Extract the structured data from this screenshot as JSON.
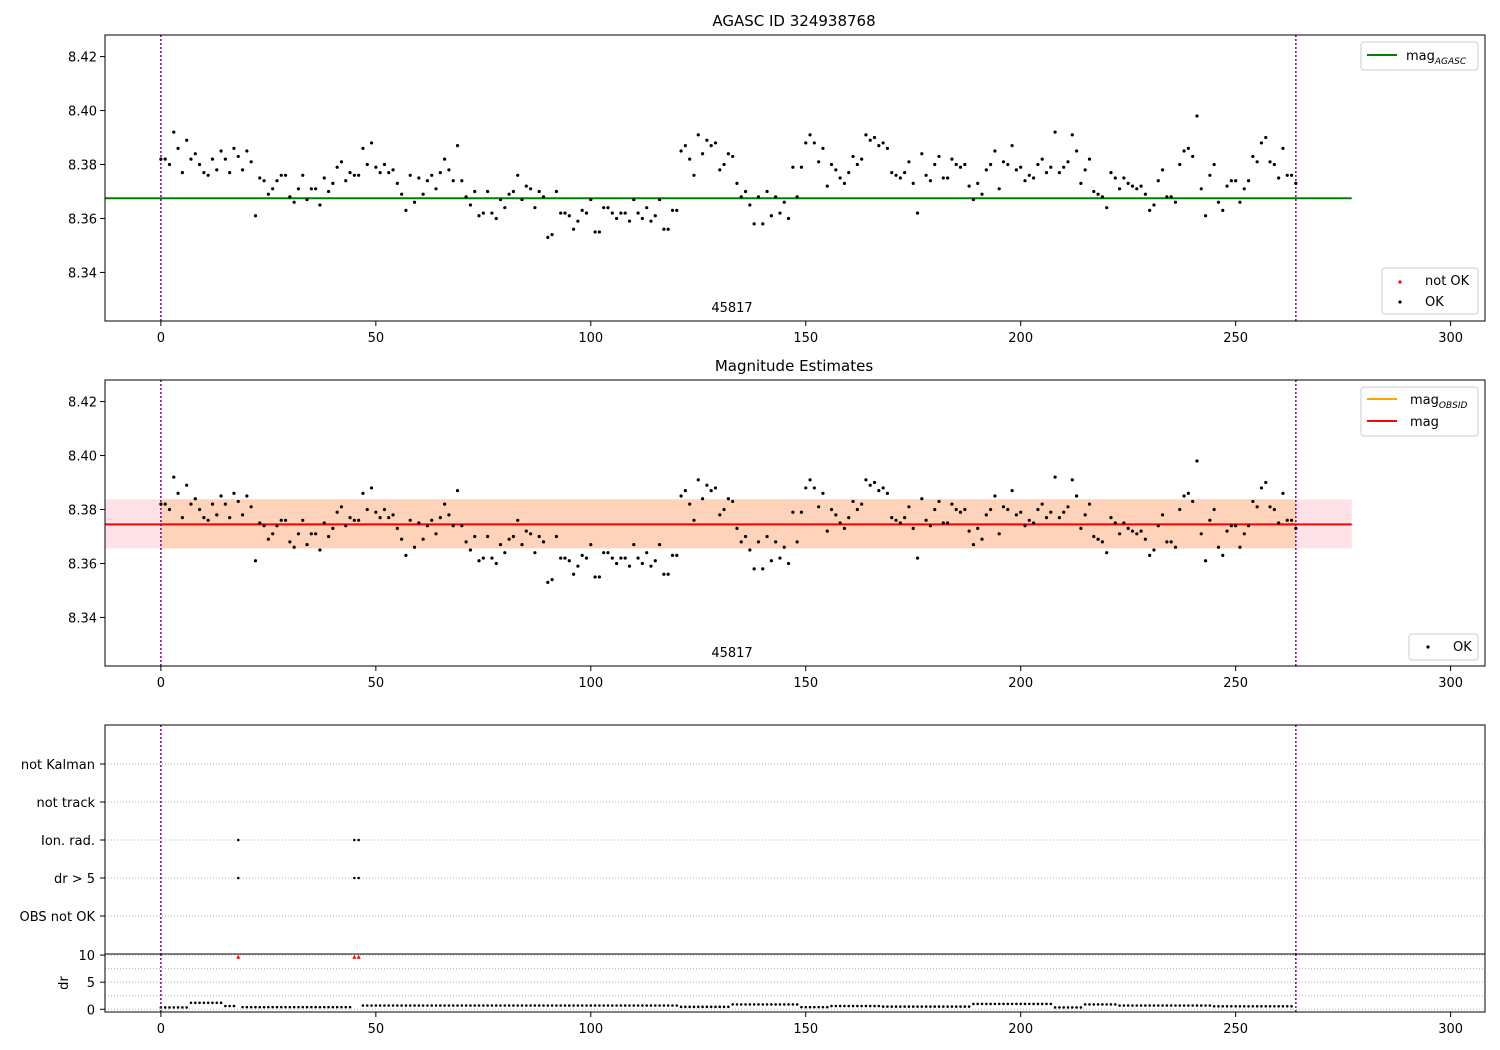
{
  "chart_data": [
    {
      "type": "scatter",
      "title": "AGASC ID 324938768",
      "ylim": [
        8.322,
        8.428
      ],
      "xlim": [
        -13,
        308
      ],
      "yticks": [
        "8.34",
        "8.36",
        "8.38",
        "8.40",
        "8.42"
      ],
      "xticks": [
        "0",
        "50",
        "100",
        "150",
        "200",
        "250",
        "300"
      ],
      "obsid_label": "45817",
      "obsid_boundaries": [
        0,
        264
      ],
      "series": [
        {
          "name": "OK",
          "color": "#000000"
        },
        {
          "name": "not OK",
          "color": "#ff0000"
        }
      ],
      "reference_lines": [
        {
          "name": "mag_AGASC",
          "value": 8.3675,
          "x_range": [
            -13,
            277
          ],
          "color": "#008000"
        }
      ],
      "legend_upper": {
        "label": "mag",
        "subscript": "AGASC"
      },
      "legend_lower": [
        "not OK",
        "OK"
      ],
      "grid": false
    },
    {
      "type": "scatter",
      "title": "Magnitude Estimates",
      "ylim": [
        8.322,
        8.428
      ],
      "xlim": [
        -13,
        308
      ],
      "yticks": [
        "8.34",
        "8.36",
        "8.38",
        "8.40",
        "8.42"
      ],
      "xticks": [
        "0",
        "50",
        "100",
        "150",
        "200",
        "250",
        "300"
      ],
      "obsid_label": "45817",
      "obsid_boundaries": [
        0,
        264
      ],
      "series": [
        {
          "name": "OK",
          "color": "#000000"
        }
      ],
      "reference_lines": [
        {
          "name": "mag_OBSID",
          "value": 8.3745,
          "band": [
            8.3656,
            8.3838
          ],
          "x_range": [
            0,
            264
          ],
          "color": "#ffa500"
        },
        {
          "name": "mag",
          "value": 8.3745,
          "band": [
            8.3656,
            8.3838
          ],
          "x_range": [
            -13,
            277
          ],
          "color": "#ff0000"
        }
      ],
      "legend": [
        {
          "label": "mag",
          "subscript": "OBSID",
          "color": "#ffa500"
        },
        {
          "label": "mag",
          "subscript": "",
          "color": "#ff0000"
        }
      ],
      "legend_lower": [
        "OK"
      ],
      "grid": false
    },
    {
      "type": "scatter",
      "title": "",
      "categories": [
        "not Kalman",
        "not track",
        "Ion. rad.",
        "dr > 5",
        "OBS not OK"
      ],
      "flag_points": {
        "Ion. rad.": [
          18,
          45,
          46
        ],
        "dr > 5": [
          18,
          45,
          46
        ]
      },
      "xlim": [
        -13,
        308
      ],
      "obsid_boundaries": [
        0,
        264
      ],
      "grid": true
    },
    {
      "type": "scatter",
      "title": "",
      "ylabel": "dr",
      "yticks": [
        "0",
        "5",
        "10"
      ],
      "xticks": [
        "0",
        "50",
        "100",
        "150",
        "200",
        "250",
        "300"
      ],
      "ylim": [
        -0.5,
        10.2
      ],
      "xlim": [
        -13,
        308
      ],
      "dr_over_5_markers": [
        18,
        45,
        46
      ],
      "dr_over_5_color": "#ff0000",
      "dr_segments": [
        {
          "from": 0,
          "to": 6,
          "value": 0.35
        },
        {
          "from": 7,
          "to": 14,
          "value": 1.2
        },
        {
          "from": 15,
          "to": 17,
          "value": 0.6
        },
        {
          "from": 18,
          "to": 44,
          "value": 0.4
        },
        {
          "from": 47,
          "to": 120,
          "value": 0.7
        },
        {
          "from": 121,
          "to": 132,
          "value": 0.45
        },
        {
          "from": 133,
          "to": 148,
          "value": 0.9
        },
        {
          "from": 149,
          "to": 155,
          "value": 0.4
        },
        {
          "from": 156,
          "to": 167,
          "value": 0.6
        },
        {
          "from": 168,
          "to": 188,
          "value": 0.5
        },
        {
          "from": 189,
          "to": 207,
          "value": 1.0
        },
        {
          "from": 208,
          "to": 214,
          "value": 0.35
        },
        {
          "from": 215,
          "to": 222,
          "value": 0.9
        },
        {
          "from": 223,
          "to": 244,
          "value": 0.7
        },
        {
          "from": 245,
          "to": 263,
          "value": 0.55
        }
      ],
      "obsid_boundaries": [
        0,
        264
      ],
      "grid": true
    }
  ],
  "mag_ok_points": [
    [
      0,
      8.382
    ],
    [
      1,
      8.382
    ],
    [
      2,
      8.38
    ],
    [
      3,
      8.392
    ],
    [
      4,
      8.386
    ],
    [
      5,
      8.377
    ],
    [
      6,
      8.389
    ],
    [
      7,
      8.382
    ],
    [
      8,
      8.384
    ],
    [
      9,
      8.38
    ],
    [
      10,
      8.377
    ],
    [
      11,
      8.376
    ],
    [
      12,
      8.382
    ],
    [
      13,
      8.378
    ],
    [
      14,
      8.385
    ],
    [
      15,
      8.382
    ],
    [
      16,
      8.377
    ],
    [
      17,
      8.386
    ],
    [
      18,
      8.383
    ],
    [
      19,
      8.378
    ],
    [
      20,
      8.385
    ],
    [
      21,
      8.381
    ],
    [
      22,
      8.361
    ],
    [
      23,
      8.375
    ],
    [
      24,
      8.374
    ],
    [
      25,
      8.369
    ],
    [
      26,
      8.371
    ],
    [
      27,
      8.374
    ],
    [
      28,
      8.376
    ],
    [
      29,
      8.376
    ],
    [
      30,
      8.368
    ],
    [
      31,
      8.366
    ],
    [
      32,
      8.371
    ],
    [
      33,
      8.376
    ],
    [
      34,
      8.367
    ],
    [
      35,
      8.371
    ],
    [
      36,
      8.371
    ],
    [
      37,
      8.365
    ],
    [
      38,
      8.375
    ],
    [
      39,
      8.37
    ],
    [
      40,
      8.373
    ],
    [
      41,
      8.379
    ],
    [
      42,
      8.381
    ],
    [
      43,
      8.374
    ],
    [
      44,
      8.377
    ],
    [
      45,
      8.376
    ],
    [
      46,
      8.376
    ],
    [
      47,
      8.386
    ],
    [
      48,
      8.38
    ],
    [
      49,
      8.388
    ],
    [
      50,
      8.379
    ],
    [
      51,
      8.377
    ],
    [
      52,
      8.38
    ],
    [
      53,
      8.377
    ],
    [
      54,
      8.378
    ],
    [
      55,
      8.373
    ],
    [
      56,
      8.369
    ],
    [
      57,
      8.363
    ],
    [
      58,
      8.376
    ],
    [
      59,
      8.366
    ],
    [
      60,
      8.375
    ],
    [
      61,
      8.369
    ],
    [
      62,
      8.374
    ],
    [
      63,
      8.376
    ],
    [
      64,
      8.371
    ],
    [
      65,
      8.377
    ],
    [
      66,
      8.382
    ],
    [
      67,
      8.378
    ],
    [
      68,
      8.374
    ],
    [
      69,
      8.387
    ],
    [
      70,
      8.374
    ],
    [
      71,
      8.368
    ],
    [
      72,
      8.365
    ],
    [
      73,
      8.37
    ],
    [
      74,
      8.361
    ],
    [
      75,
      8.362
    ],
    [
      76,
      8.37
    ],
    [
      77,
      8.362
    ],
    [
      78,
      8.36
    ],
    [
      79,
      8.367
    ],
    [
      80,
      8.364
    ],
    [
      81,
      8.369
    ],
    [
      82,
      8.37
    ],
    [
      83,
      8.376
    ],
    [
      84,
      8.367
    ],
    [
      85,
      8.372
    ],
    [
      86,
      8.371
    ],
    [
      87,
      8.364
    ],
    [
      88,
      8.37
    ],
    [
      89,
      8.368
    ],
    [
      90,
      8.353
    ],
    [
      91,
      8.354
    ],
    [
      92,
      8.37
    ],
    [
      93,
      8.362
    ],
    [
      94,
      8.362
    ],
    [
      95,
      8.361
    ],
    [
      96,
      8.356
    ],
    [
      97,
      8.359
    ],
    [
      98,
      8.363
    ],
    [
      99,
      8.362
    ],
    [
      100,
      8.367
    ],
    [
      101,
      8.355
    ],
    [
      102,
      8.355
    ],
    [
      103,
      8.364
    ],
    [
      104,
      8.364
    ],
    [
      105,
      8.362
    ],
    [
      106,
      8.36
    ],
    [
      107,
      8.362
    ],
    [
      108,
      8.362
    ],
    [
      109,
      8.359
    ],
    [
      110,
      8.367
    ],
    [
      111,
      8.362
    ],
    [
      112,
      8.36
    ],
    [
      113,
      8.364
    ],
    [
      114,
      8.359
    ],
    [
      115,
      8.361
    ],
    [
      116,
      8.367
    ],
    [
      117,
      8.356
    ],
    [
      118,
      8.356
    ],
    [
      119,
      8.363
    ],
    [
      120,
      8.363
    ],
    [
      121,
      8.385
    ],
    [
      122,
      8.387
    ],
    [
      123,
      8.382
    ],
    [
      124,
      8.376
    ],
    [
      125,
      8.391
    ],
    [
      126,
      8.384
    ],
    [
      127,
      8.389
    ],
    [
      128,
      8.387
    ],
    [
      129,
      8.388
    ],
    [
      130,
      8.378
    ],
    [
      131,
      8.38
    ],
    [
      132,
      8.384
    ],
    [
      133,
      8.383
    ],
    [
      134,
      8.373
    ],
    [
      135,
      8.368
    ],
    [
      136,
      8.37
    ],
    [
      137,
      8.365
    ],
    [
      138,
      8.358
    ],
    [
      139,
      8.368
    ],
    [
      140,
      8.358
    ],
    [
      141,
      8.37
    ],
    [
      142,
      8.361
    ],
    [
      143,
      8.368
    ],
    [
      144,
      8.362
    ],
    [
      145,
      8.366
    ],
    [
      146,
      8.36
    ],
    [
      147,
      8.379
    ],
    [
      148,
      8.368
    ],
    [
      149,
      8.379
    ],
    [
      150,
      8.388
    ],
    [
      151,
      8.391
    ],
    [
      152,
      8.388
    ],
    [
      153,
      8.381
    ],
    [
      154,
      8.386
    ],
    [
      155,
      8.372
    ],
    [
      156,
      8.38
    ],
    [
      157,
      8.378
    ],
    [
      158,
      8.375
    ],
    [
      159,
      8.373
    ],
    [
      160,
      8.377
    ],
    [
      161,
      8.383
    ],
    [
      162,
      8.38
    ],
    [
      163,
      8.382
    ],
    [
      164,
      8.391
    ],
    [
      165,
      8.389
    ],
    [
      166,
      8.39
    ],
    [
      167,
      8.387
    ],
    [
      168,
      8.388
    ],
    [
      169,
      8.386
    ],
    [
      170,
      8.377
    ],
    [
      171,
      8.376
    ],
    [
      172,
      8.375
    ],
    [
      173,
      8.377
    ],
    [
      174,
      8.381
    ],
    [
      175,
      8.373
    ],
    [
      176,
      8.362
    ],
    [
      177,
      8.384
    ],
    [
      178,
      8.376
    ],
    [
      179,
      8.374
    ],
    [
      180,
      8.38
    ],
    [
      181,
      8.383
    ],
    [
      182,
      8.375
    ],
    [
      183,
      8.375
    ],
    [
      184,
      8.382
    ],
    [
      185,
      8.38
    ],
    [
      186,
      8.379
    ],
    [
      187,
      8.38
    ],
    [
      188,
      8.372
    ],
    [
      189,
      8.367
    ],
    [
      190,
      8.373
    ],
    [
      191,
      8.369
    ],
    [
      192,
      8.378
    ],
    [
      193,
      8.38
    ],
    [
      194,
      8.385
    ],
    [
      195,
      8.371
    ],
    [
      196,
      8.381
    ],
    [
      197,
      8.38
    ],
    [
      198,
      8.387
    ],
    [
      199,
      8.378
    ],
    [
      200,
      8.379
    ],
    [
      201,
      8.374
    ],
    [
      202,
      8.376
    ],
    [
      203,
      8.375
    ],
    [
      204,
      8.38
    ],
    [
      205,
      8.382
    ],
    [
      206,
      8.377
    ],
    [
      207,
      8.379
    ],
    [
      208,
      8.392
    ],
    [
      209,
      8.377
    ],
    [
      210,
      8.379
    ],
    [
      211,
      8.381
    ],
    [
      212,
      8.391
    ],
    [
      213,
      8.385
    ],
    [
      214,
      8.373
    ],
    [
      215,
      8.378
    ],
    [
      216,
      8.382
    ],
    [
      217,
      8.37
    ],
    [
      218,
      8.369
    ],
    [
      219,
      8.368
    ],
    [
      220,
      8.364
    ],
    [
      221,
      8.377
    ],
    [
      222,
      8.375
    ],
    [
      223,
      8.371
    ],
    [
      224,
      8.375
    ],
    [
      225,
      8.373
    ],
    [
      226,
      8.372
    ],
    [
      227,
      8.371
    ],
    [
      228,
      8.372
    ],
    [
      229,
      8.369
    ],
    [
      230,
      8.363
    ],
    [
      231,
      8.365
    ],
    [
      232,
      8.374
    ],
    [
      233,
      8.378
    ],
    [
      234,
      8.368
    ],
    [
      235,
      8.368
    ],
    [
      236,
      8.366
    ],
    [
      237,
      8.38
    ],
    [
      238,
      8.385
    ],
    [
      239,
      8.386
    ],
    [
      240,
      8.383
    ],
    [
      241,
      8.398
    ],
    [
      242,
      8.371
    ],
    [
      243,
      8.361
    ],
    [
      244,
      8.376
    ],
    [
      245,
      8.38
    ],
    [
      246,
      8.366
    ],
    [
      247,
      8.363
    ],
    [
      248,
      8.372
    ],
    [
      249,
      8.374
    ],
    [
      250,
      8.374
    ],
    [
      251,
      8.366
    ],
    [
      252,
      8.371
    ],
    [
      253,
      8.374
    ],
    [
      254,
      8.383
    ],
    [
      255,
      8.381
    ],
    [
      256,
      8.388
    ],
    [
      257,
      8.39
    ],
    [
      258,
      8.381
    ],
    [
      259,
      8.38
    ],
    [
      260,
      8.375
    ],
    [
      261,
      8.386
    ],
    [
      262,
      8.376
    ],
    [
      263,
      8.376
    ],
    [
      264,
      8.373
    ]
  ]
}
